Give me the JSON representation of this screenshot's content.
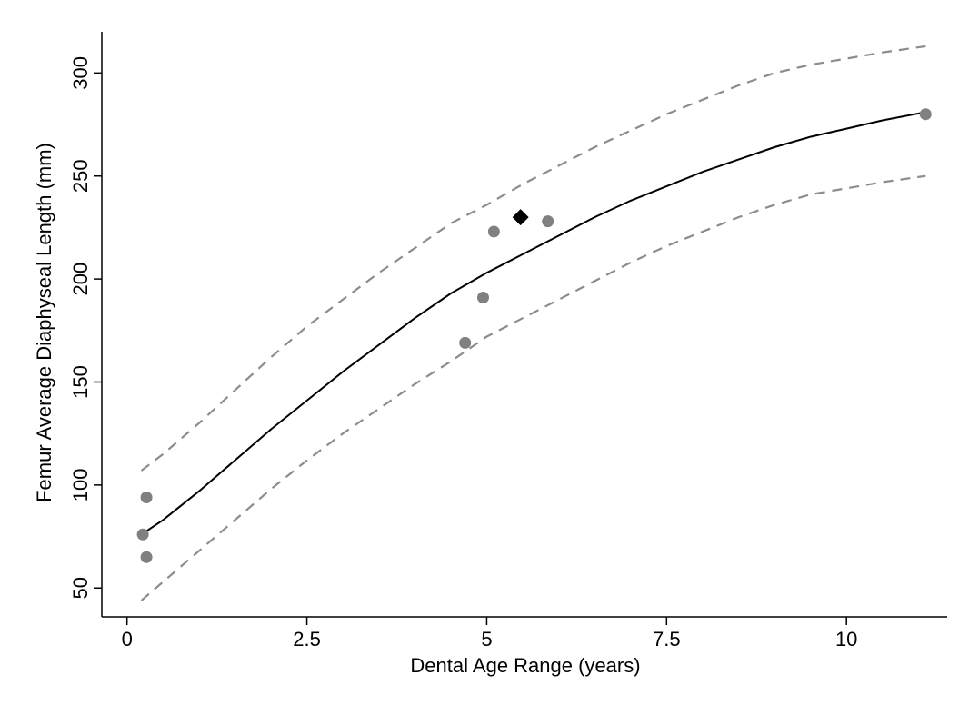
{
  "chart_data": {
    "type": "scatter",
    "xlabel": "Dental Age Range (years)",
    "ylabel": "Femur Average Diaphyseal Length (mm)",
    "xlim": [
      -0.35,
      11.4
    ],
    "ylim": [
      36,
      320
    ],
    "x_ticks": [
      0,
      2.5,
      5,
      7.5,
      10
    ],
    "x_tick_labels": [
      "0",
      "2.5",
      "5",
      "7.5",
      "10"
    ],
    "y_ticks": [
      50,
      100,
      150,
      200,
      250,
      300
    ],
    "y_tick_labels": [
      "50",
      "100",
      "150",
      "200",
      "250",
      "300"
    ],
    "grid": false,
    "colors": {
      "points": "#808080",
      "highlight": "#000000",
      "fit_line": "#000000",
      "interval_line": "#8c8c8c"
    },
    "series": [
      {
        "kind": "points",
        "marker": "circle",
        "x": [
          0.22,
          0.27,
          0.27,
          4.7,
          4.95,
          5.1,
          5.85,
          11.1
        ],
        "y": [
          76,
          65,
          94,
          169,
          191,
          223,
          228,
          280
        ]
      },
      {
        "kind": "points",
        "marker": "diamond",
        "x": [
          5.47
        ],
        "y": [
          230
        ]
      },
      {
        "kind": "fit",
        "style": "solid",
        "x": [
          0.2,
          0.5,
          1,
          1.5,
          2,
          2.5,
          3,
          3.5,
          4,
          4.5,
          5,
          5.5,
          6,
          6.5,
          7,
          7.5,
          8,
          8.5,
          9,
          9.5,
          10,
          10.5,
          11.1
        ],
        "y": [
          76,
          83,
          97,
          112,
          127,
          141,
          155,
          168,
          181,
          193,
          203,
          212,
          221,
          230,
          238,
          245,
          252,
          258,
          264,
          269,
          273,
          277,
          281
        ]
      },
      {
        "kind": "interval",
        "style": "dashed",
        "x": [
          0.2,
          0.5,
          1,
          1.5,
          2,
          2.5,
          3,
          3.5,
          4,
          4.5,
          5,
          5.5,
          6,
          6.5,
          7,
          7.5,
          8,
          8.5,
          9,
          9.5,
          10,
          10.5,
          11.1
        ],
        "y": [
          107,
          115,
          130,
          146,
          162,
          177,
          190,
          203,
          215,
          227,
          236,
          246,
          255,
          264,
          272,
          280,
          287,
          294,
          300,
          304,
          307,
          310,
          313
        ]
      },
      {
        "kind": "interval",
        "style": "dashed",
        "x": [
          0.2,
          0.5,
          1,
          1.5,
          2,
          2.5,
          3,
          3.5,
          4,
          4.5,
          5,
          5.5,
          6,
          6.5,
          7,
          7.5,
          8,
          8.5,
          9,
          9.5,
          10,
          10.5,
          11.1
        ],
        "y": [
          44,
          53,
          68,
          83,
          98,
          112,
          125,
          137,
          149,
          160,
          172,
          181,
          190,
          199,
          208,
          216,
          223,
          230,
          236,
          241,
          244,
          247,
          250
        ]
      }
    ]
  }
}
